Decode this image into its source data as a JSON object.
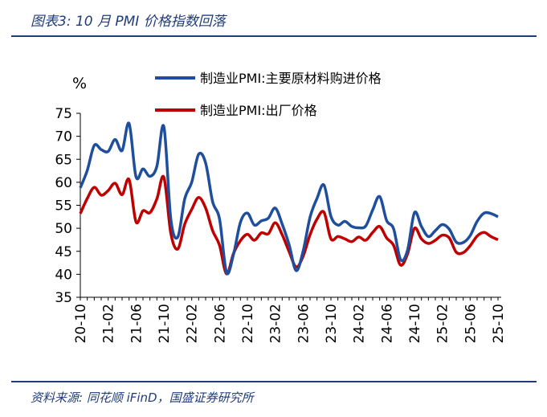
{
  "header": {
    "title": "图表3:  10 月 PMI 价格指数回落"
  },
  "footer": {
    "source": "资料来源:  同花顺 iFinD，国盛证券研究所"
  },
  "chart_data": {
    "type": "line",
    "title": "10 月 PMI 价格指数回落",
    "xlabel": "",
    "ylabel": "%",
    "ylim": [
      35,
      75
    ],
    "yticks": [
      35,
      40,
      45,
      50,
      55,
      60,
      65,
      70,
      75
    ],
    "tick_labels": [
      "20-10",
      "21-02",
      "21-06",
      "21-10",
      "22-02",
      "22-06",
      "22-10",
      "23-02",
      "23-06",
      "23-10",
      "24-02",
      "24-06",
      "24-10",
      "25-02",
      "25-06",
      "25-10"
    ],
    "legend_position": "top-right",
    "colors": {
      "series1": "#1f4e9c",
      "series2": "#c00000",
      "accent": "#1f3d7a"
    },
    "categories": [
      "20-10",
      "20-11",
      "20-12",
      "21-01",
      "21-02",
      "21-03",
      "21-04",
      "21-05",
      "21-06",
      "21-07",
      "21-08",
      "21-09",
      "21-10",
      "21-11",
      "21-12",
      "22-01",
      "22-02",
      "22-03",
      "22-04",
      "22-05",
      "22-06",
      "22-07",
      "22-08",
      "22-09",
      "22-10",
      "22-11",
      "22-12",
      "23-01",
      "23-02",
      "23-03",
      "23-04",
      "23-05",
      "23-06",
      "23-07",
      "23-08",
      "23-09",
      "23-10",
      "23-11",
      "23-12",
      "24-01",
      "24-02",
      "24-03",
      "24-04",
      "24-05",
      "24-06",
      "24-07",
      "24-08",
      "24-09",
      "24-10",
      "24-11",
      "24-12",
      "25-01",
      "25-02",
      "25-03",
      "25-04",
      "25-05",
      "25-06",
      "25-07",
      "25-08",
      "25-09",
      "25-10"
    ],
    "series": [
      {
        "name": "制造业PMI:主要原材料购进价格",
        "values": [
          58.8,
          62.6,
          68.0,
          67.1,
          66.7,
          69.3,
          66.9,
          72.8,
          61.2,
          62.9,
          61.3,
          63.5,
          72.1,
          52.0,
          48.1,
          56.4,
          60.0,
          66.1,
          64.2,
          55.8,
          52.0,
          40.4,
          44.3,
          51.3,
          53.3,
          50.7,
          51.6,
          52.2,
          54.4,
          50.9,
          46.4,
          40.8,
          45.0,
          52.4,
          56.5,
          59.4,
          52.6,
          50.7,
          51.5,
          50.4,
          50.1,
          50.5,
          54.0,
          56.9,
          51.7,
          49.9,
          43.2,
          45.2,
          53.4,
          50.4,
          48.2,
          49.5,
          50.8,
          49.8,
          47.0,
          46.9,
          48.4,
          51.5,
          53.3,
          53.2,
          52.5
        ]
      },
      {
        "name": "制造业PMI:出厂价格",
        "values": [
          53.2,
          56.5,
          58.9,
          57.2,
          58.2,
          59.8,
          57.3,
          60.6,
          51.4,
          53.8,
          53.4,
          56.4,
          61.1,
          48.9,
          45.5,
          50.9,
          54.1,
          56.7,
          54.4,
          49.5,
          46.3,
          40.1,
          44.5,
          47.3,
          48.7,
          47.4,
          49.0,
          48.8,
          51.2,
          48.6,
          44.9,
          41.6,
          43.9,
          48.6,
          52.0,
          53.5,
          47.7,
          48.2,
          47.7,
          47.1,
          48.1,
          47.4,
          49.1,
          50.4,
          47.9,
          46.3,
          42.0,
          44.4,
          50.0,
          47.7,
          46.7,
          47.4,
          48.5,
          47.9,
          44.8,
          44.7,
          46.2,
          48.3,
          49.1,
          48.2,
          47.5
        ]
      }
    ]
  }
}
